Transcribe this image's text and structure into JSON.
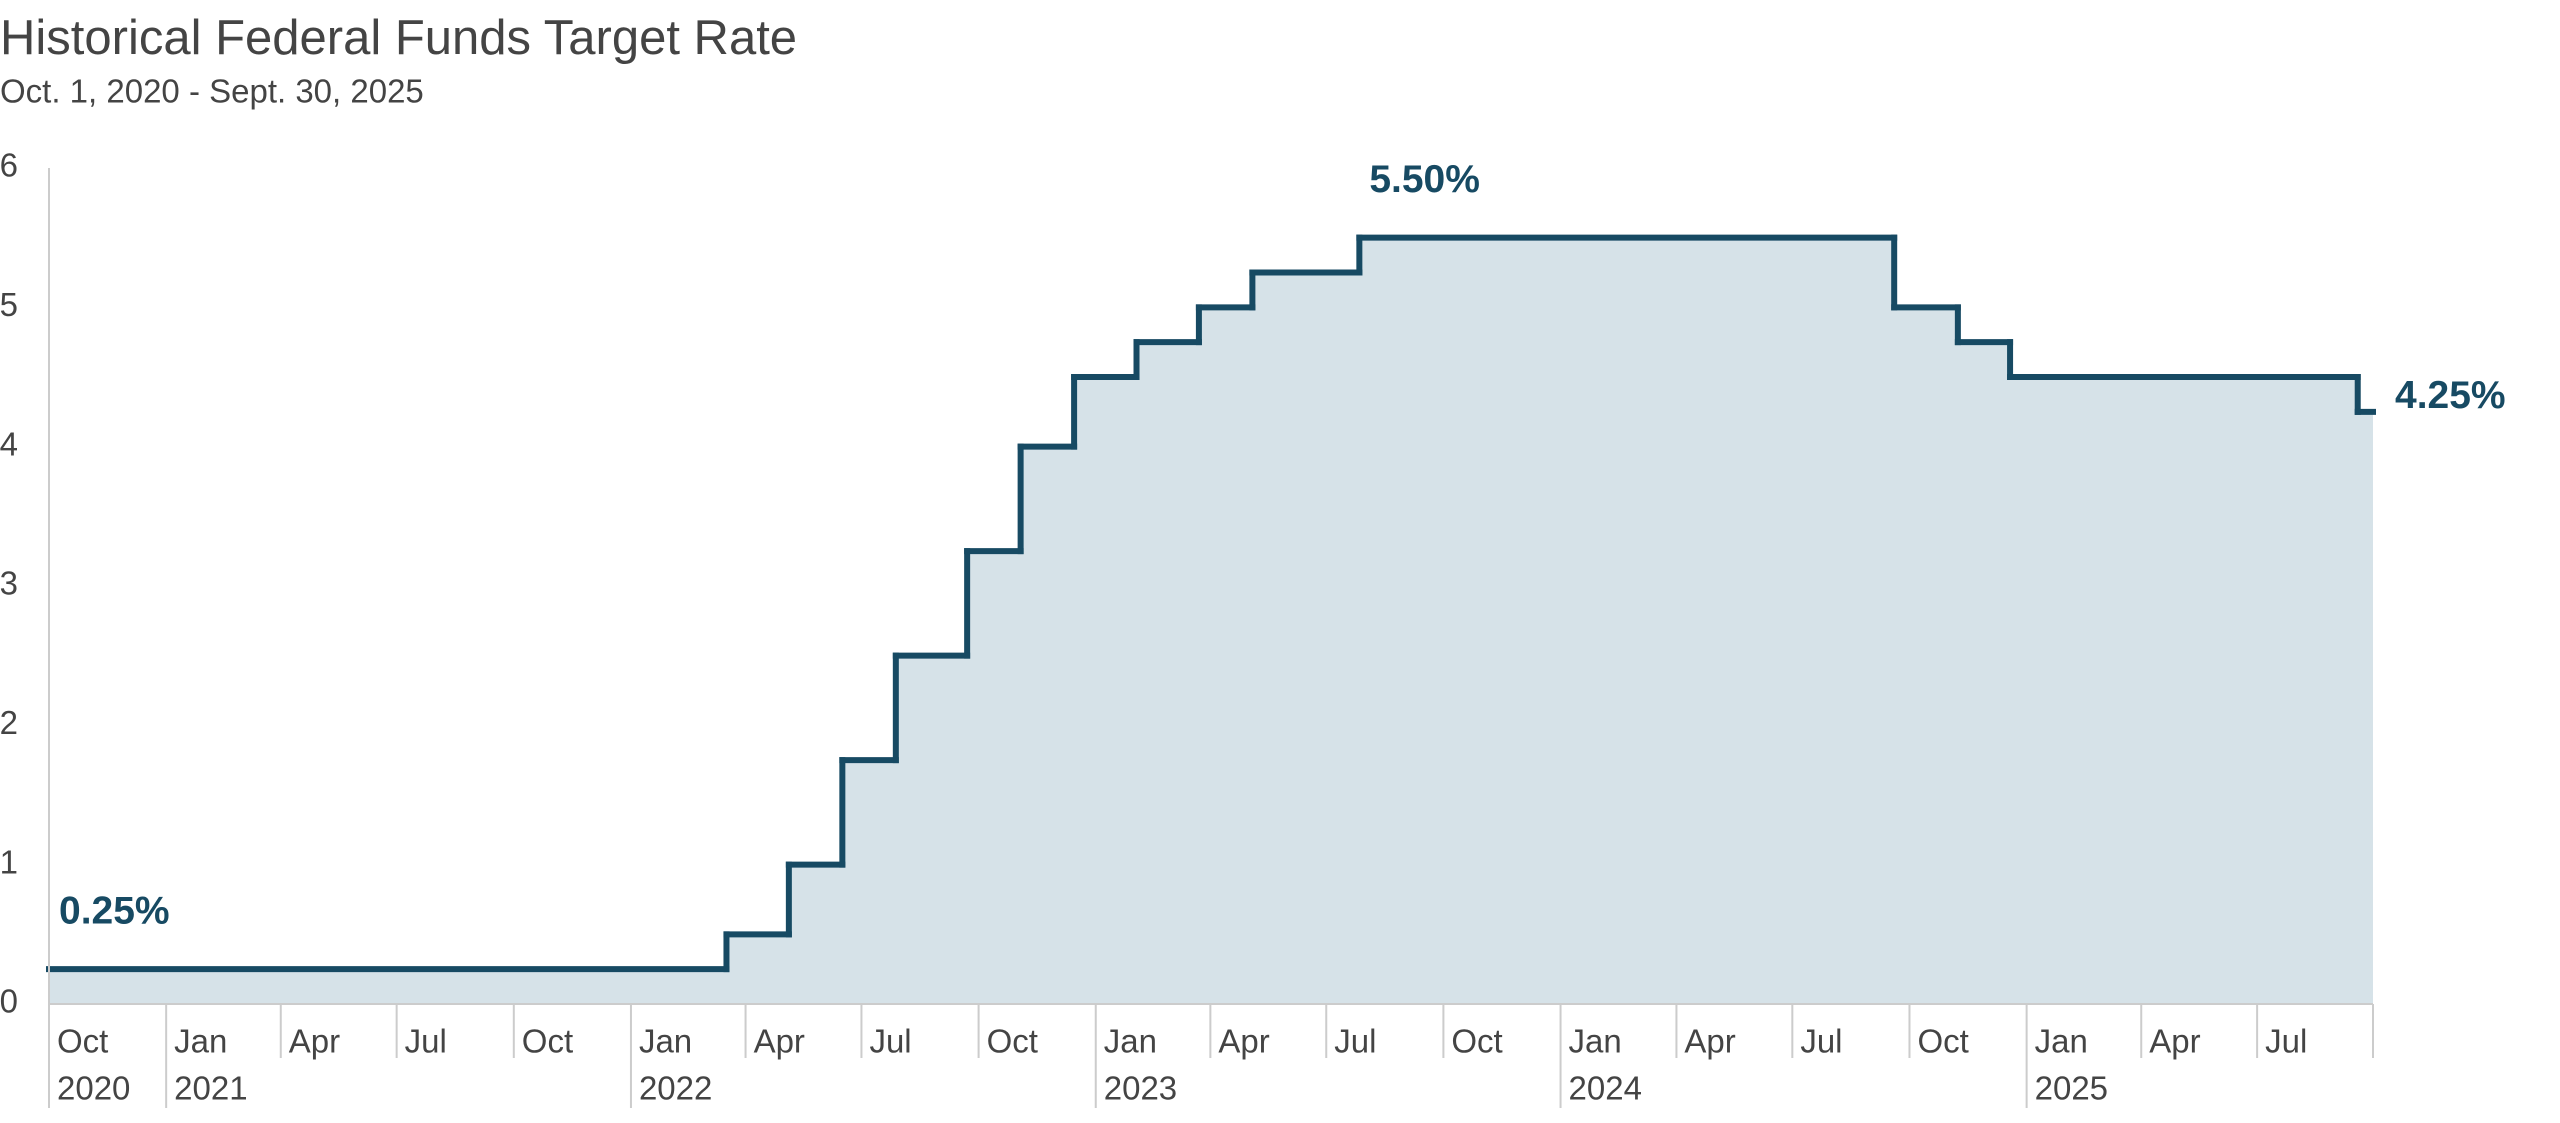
{
  "chart_data": {
    "type": "step-area",
    "title": "Historical Federal Funds Target Rate",
    "subtitle": "Oct. 1, 2020 - Sept. 30, 2025",
    "x": [
      "2020-10-01",
      "2022-03-17",
      "2022-05-05",
      "2022-06-16",
      "2022-07-28",
      "2022-09-22",
      "2022-11-03",
      "2022-12-15",
      "2023-02-02",
      "2023-03-23",
      "2023-05-04",
      "2023-07-27",
      "2024-09-19",
      "2024-11-08",
      "2024-12-19",
      "2025-09-18"
    ],
    "series": [
      {
        "color": "#174a63",
        "fill": "#d6e2e8",
        "values": [
          0.25,
          0.5,
          1,
          1.75,
          2.5,
          3.25,
          4,
          4.5,
          4.75,
          5,
          5.25,
          5.5,
          5,
          4.75,
          4.5,
          4.25
        ],
        "value_labels": [
          "0.25%",
          null,
          null,
          null,
          null,
          null,
          null,
          null,
          null,
          null,
          null,
          "5.50%",
          null,
          null,
          null,
          "4.25%"
        ]
      }
    ],
    "xlim": [
      "2020-10-01",
      "2025-09-30"
    ],
    "xticks": [
      {
        "value": "2020-10-01",
        "label": "Oct"
      },
      {
        "value": "2021-01-01",
        "label": "Jan"
      },
      {
        "value": "2021-04-01",
        "label": "Apr"
      },
      {
        "value": "2021-07-01",
        "label": "Jul"
      },
      {
        "value": "2021-10-01",
        "label": "Oct"
      },
      {
        "value": "2022-01-01",
        "label": "Jan"
      },
      {
        "value": "2022-04-01",
        "label": "Apr"
      },
      {
        "value": "2022-07-01",
        "label": "Jul"
      },
      {
        "value": "2022-10-01",
        "label": "Oct"
      },
      {
        "value": "2023-01-01",
        "label": "Jan"
      },
      {
        "value": "2023-04-01",
        "label": "Apr"
      },
      {
        "value": "2023-07-01",
        "label": "Jul"
      },
      {
        "value": "2023-10-01",
        "label": "Oct"
      },
      {
        "value": "2024-01-01",
        "label": "Jan"
      },
      {
        "value": "2024-04-01",
        "label": "Apr"
      },
      {
        "value": "2024-07-01",
        "label": "Jul"
      },
      {
        "value": "2024-10-01",
        "label": "Oct"
      },
      {
        "value": "2025-01-01",
        "label": "Jan"
      },
      {
        "value": "2025-04-01",
        "label": "Apr"
      },
      {
        "value": "2025-07-01",
        "label": "Jul"
      }
    ],
    "xtick_years": [
      {
        "value": "2020-10-01",
        "label": "2020"
      },
      {
        "value": "2021-01-01",
        "label": "2021"
      },
      {
        "value": "2022-01-01",
        "label": "2022"
      },
      {
        "value": "2023-01-01",
        "label": "2023"
      },
      {
        "value": "2024-01-01",
        "label": "2024"
      },
      {
        "value": "2025-01-01",
        "label": "2025"
      }
    ],
    "ylim": [
      0,
      6
    ],
    "yticks": [
      0,
      1,
      2,
      3,
      4,
      5,
      6
    ],
    "grid": false
  }
}
